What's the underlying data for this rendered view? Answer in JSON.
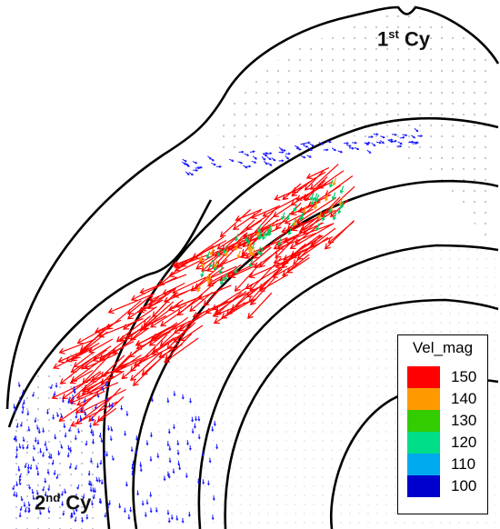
{
  "labels": {
    "first_cy": {
      "main": "1",
      "sup": "st",
      "rest": " Cy"
    },
    "second_cy": {
      "main": "2",
      "sup": "nd",
      "rest": " Cy"
    }
  },
  "legend": {
    "title": "Vel_mag",
    "entries": [
      {
        "value": "150",
        "color": "#ff0000"
      },
      {
        "value": "140",
        "color": "#ff9900"
      },
      {
        "value": "130",
        "color": "#33cc00"
      },
      {
        "value": "120",
        "color": "#00dd88"
      },
      {
        "value": "110",
        "color": "#00aaee"
      },
      {
        "value": "100",
        "color": "#0000cc"
      }
    ]
  },
  "colors": {
    "low_velocity_arrows": "#1a1aff",
    "mid_velocity_arrows": "#00cc66",
    "high_velocity_arrows": "#ff0000",
    "grid_dots": "#9aa0b4",
    "outlines": "#000000"
  }
}
